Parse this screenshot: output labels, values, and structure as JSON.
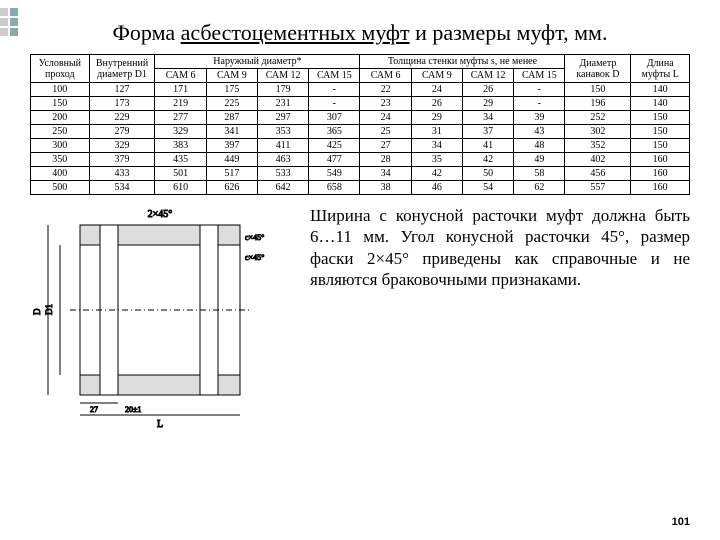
{
  "title_pre": "Форма ",
  "title_u": "асбестоцементных муфт",
  "title_post": " и размеры муфт, мм.",
  "headers_top": [
    "Условный проход",
    "Внутренний диаметр D1",
    "Наружный диаметр*",
    "Толщина стенки муфты s, не менее",
    "Диаметр канавок D",
    "Длина муфты L"
  ],
  "sam_cols": [
    "САМ 6",
    "САМ 9",
    "САМ 12",
    "САМ 15",
    "САМ 6",
    "САМ 9",
    "САМ 12",
    "САМ 15"
  ],
  "rows": [
    [
      "100",
      "127",
      "171",
      "175",
      "179",
      "-",
      "22",
      "24",
      "26",
      "-",
      "150",
      "140"
    ],
    [
      "150",
      "173",
      "219",
      "225",
      "231",
      "-",
      "23",
      "26",
      "29",
      "-",
      "196",
      "140"
    ],
    [
      "200",
      "229",
      "277",
      "287",
      "297",
      "307",
      "24",
      "29",
      "34",
      "39",
      "252",
      "150"
    ],
    [
      "250",
      "279",
      "329",
      "341",
      "353",
      "365",
      "25",
      "31",
      "37",
      "43",
      "302",
      "150"
    ],
    [
      "300",
      "329",
      "383",
      "397",
      "411",
      "425",
      "27",
      "34",
      "41",
      "48",
      "352",
      "150"
    ],
    [
      "350",
      "379",
      "435",
      "449",
      "463",
      "477",
      "28",
      "35",
      "42",
      "49",
      "402",
      "160"
    ],
    [
      "400",
      "433",
      "501",
      "517",
      "533",
      "549",
      "34",
      "42",
      "50",
      "58",
      "456",
      "160"
    ],
    [
      "500",
      "534",
      "610",
      "626",
      "642",
      "658",
      "38",
      "46",
      "54",
      "62",
      "557",
      "160"
    ]
  ],
  "note": "Ширина с конусной расточки муфт должна быть 6…11 мм. Угол конусной расточки 45°, размер фаски 2×45° приведены как справочные и не являются браковочными признаками.",
  "page": "101",
  "table_style": {
    "border_color": "#000000",
    "font_size": 10,
    "background": "#ffffff"
  }
}
